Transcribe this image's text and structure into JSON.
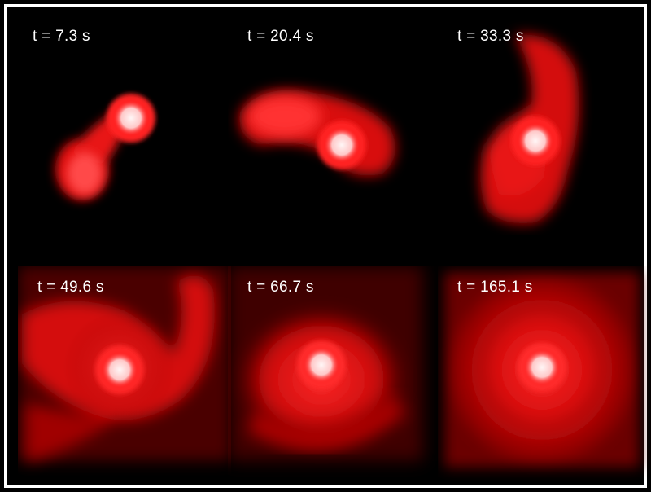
{
  "panels": [
    {
      "label": "t = 7.3 s"
    },
    {
      "label": "t = 20.4 s"
    },
    {
      "label": "t = 33.3 s"
    },
    {
      "label": "t = 49.6 s"
    },
    {
      "label": "t = 66.7 s"
    },
    {
      "label": "t = 165.1 s"
    }
  ],
  "colors": {
    "background": "#000000",
    "gas": "#ff1a1a",
    "core": "#fff0f0",
    "frame": "#ffffff",
    "text": "#ffffff"
  }
}
